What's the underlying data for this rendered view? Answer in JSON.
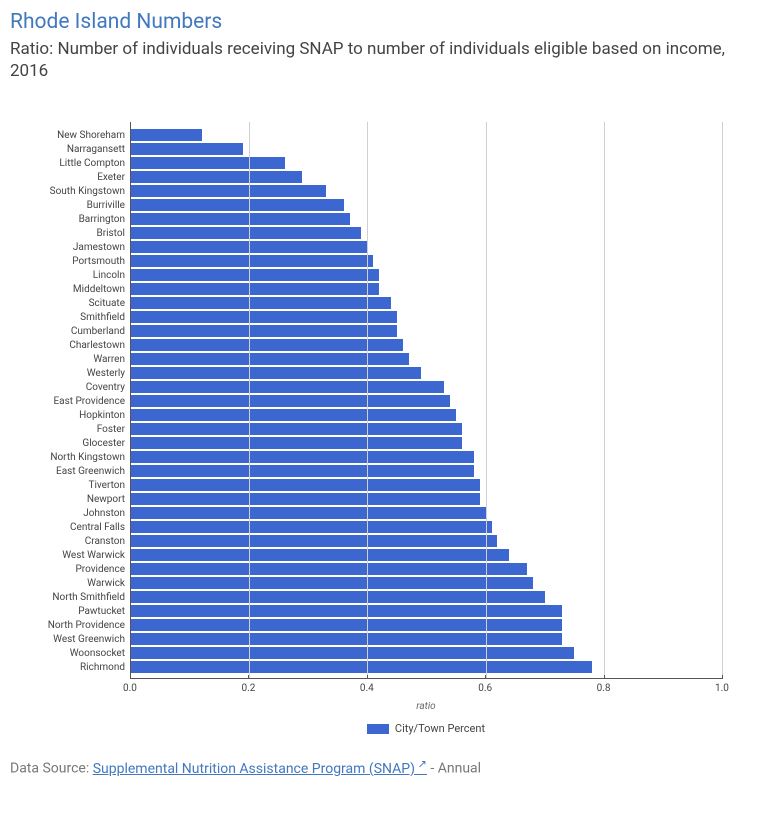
{
  "header": {
    "title": "Rhode Island Numbers",
    "subtitle": "Ratio: Number of individuals receiving SNAP to number of individuals eligible based on income, 2016"
  },
  "chart": {
    "type": "bar-horizontal",
    "x_axis_label": "ratio",
    "xlim": [
      0.0,
      1.0
    ],
    "xticks": [
      0.0,
      0.2,
      0.4,
      0.6,
      0.8,
      1.0
    ],
    "xtick_labels": [
      "0.0",
      "0.2",
      "0.4",
      "0.6",
      "0.8",
      "1.0"
    ],
    "bar_color": "#3d67d0",
    "grid_color": "#d0d0d0",
    "axis_color": "#555555",
    "background_color": "#ffffff",
    "label_fontsize": 10,
    "legend_label": "City/Town Percent",
    "categories": [
      "New Shoreham",
      "Narragansett",
      "Little Compton",
      "Exeter",
      "South Kingstown",
      "Burriville",
      "Barrington",
      "Bristol",
      "Jamestown",
      "Portsmouth",
      "Lincoln",
      "Middeltown",
      "Scituate",
      "Smithfield",
      "Cumberland",
      "Charlestown",
      "Warren",
      "Westerly",
      "Coventry",
      "East Providence",
      "Hopkinton",
      "Foster",
      "Glocester",
      "North Kingstown",
      "East Greenwich",
      "Tiverton",
      "Newport",
      "Johnston",
      "Central Falls",
      "Cranston",
      "West Warwick",
      "Providence",
      "Warwick",
      "North Smithfield",
      "Pawtucket",
      "North Providence",
      "West Greenwich",
      "Woonsocket",
      "Richmond"
    ],
    "values": [
      0.12,
      0.19,
      0.26,
      0.29,
      0.33,
      0.36,
      0.37,
      0.39,
      0.4,
      0.41,
      0.42,
      0.42,
      0.44,
      0.45,
      0.45,
      0.46,
      0.47,
      0.49,
      0.53,
      0.54,
      0.55,
      0.56,
      0.56,
      0.58,
      0.58,
      0.59,
      0.59,
      0.6,
      0.61,
      0.62,
      0.64,
      0.67,
      0.68,
      0.7,
      0.73,
      0.73,
      0.73,
      0.75,
      0.78
    ]
  },
  "footer": {
    "data_source_prefix": "Data Source: ",
    "data_source_link_text": "Supplemental Nutrition Assistance Program (SNAP)",
    "data_source_suffix": " - Annual"
  }
}
